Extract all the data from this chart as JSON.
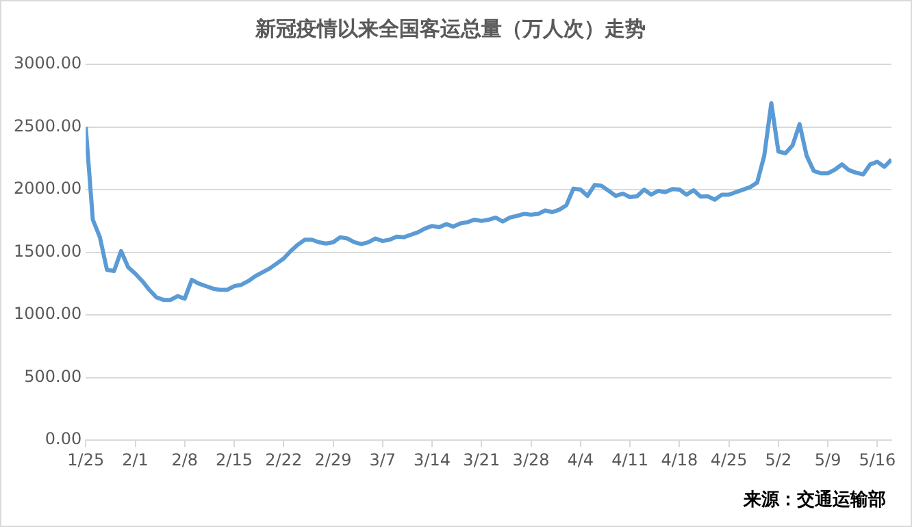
{
  "chart_data": {
    "type": "line",
    "title": "新冠疫情以来全国客运总量（万人次）走势",
    "annotations": [
      "来源：交通运输部"
    ],
    "x": [
      "--01-25",
      "--01-26",
      "--01-27",
      "--01-28",
      "--01-29",
      "--01-30",
      "--01-31",
      "--02-01",
      "--02-02",
      "--02-03",
      "--02-04",
      "--02-05",
      "--02-06",
      "--02-07",
      "--02-08",
      "--02-09",
      "--02-10",
      "--02-11",
      "--02-12",
      "--02-13",
      "--02-14",
      "--02-15",
      "--02-16",
      "--02-17",
      "--02-18",
      "--02-19",
      "--02-20",
      "--02-21",
      "--02-22",
      "--02-23",
      "--02-24",
      "--02-25",
      "--02-26",
      "--02-27",
      "--02-28",
      "--02-29",
      "--03-01",
      "--03-02",
      "--03-03",
      "--03-04",
      "--03-05",
      "--03-06",
      "--03-07",
      "--03-08",
      "--03-09",
      "--03-10",
      "--03-11",
      "--03-12",
      "--03-13",
      "--03-14",
      "--03-15",
      "--03-16",
      "--03-17",
      "--03-18",
      "--03-19",
      "--03-20",
      "--03-21",
      "--03-22",
      "--03-23",
      "--03-24",
      "--03-25",
      "--03-26",
      "--03-27",
      "--03-28",
      "--03-29",
      "--03-30",
      "--03-31",
      "--04-01",
      "--04-02",
      "--04-03",
      "--04-04",
      "--04-05",
      "--04-06",
      "--04-07",
      "--04-08",
      "--04-09",
      "--04-10",
      "--04-11",
      "--04-12",
      "--04-13",
      "--04-14",
      "--04-15",
      "--04-16",
      "--04-17",
      "--04-18",
      "--04-19",
      "--04-20",
      "--04-21",
      "--04-22",
      "--04-23",
      "--04-24",
      "--04-25",
      "--04-26",
      "--04-27",
      "--04-28",
      "--04-29",
      "--04-30",
      "--05-01",
      "--05-02",
      "--05-03",
      "--05-04",
      "--05-05",
      "--05-06",
      "--05-07",
      "--05-08",
      "--05-09",
      "--05-10",
      "--05-11",
      "--05-12",
      "--05-13",
      "--05-14",
      "--05-15",
      "--05-16",
      "--05-17",
      "--05-18"
    ],
    "series": [
      {
        "color": "#5b9bd5",
        "values": [
          2500,
          1760,
          1620,
          1360,
          1350,
          1510,
          1380,
          1330,
          1270,
          1200,
          1140,
          1120,
          1120,
          1150,
          1130,
          1280,
          1250,
          1230,
          1210,
          1200,
          1200,
          1230,
          1240,
          1270,
          1310,
          1340,
          1370,
          1410,
          1450,
          1510,
          1560,
          1600,
          1600,
          1580,
          1570,
          1580,
          1620,
          1610,
          1580,
          1565,
          1580,
          1610,
          1590,
          1600,
          1625,
          1620,
          1640,
          1660,
          1690,
          1710,
          1700,
          1725,
          1705,
          1730,
          1740,
          1760,
          1750,
          1760,
          1777,
          1745,
          1777,
          1790,
          1806,
          1800,
          1806,
          1834,
          1820,
          1840,
          1875,
          2008,
          2000,
          1950,
          2037,
          2030,
          1990,
          1950,
          1968,
          1940,
          1947,
          2000,
          1960,
          1990,
          1980,
          2005,
          2000,
          1960,
          1995,
          1944,
          1947,
          1920,
          1960,
          1960,
          1980,
          2000,
          2020,
          2057,
          2270,
          2690,
          2305,
          2290,
          2353,
          2523,
          2270,
          2150,
          2130,
          2130,
          2160,
          2202,
          2155,
          2135,
          2122,
          2202,
          2222,
          2182,
          2240
        ]
      }
    ],
    "xlim": [
      "--01-25",
      "--05-18"
    ],
    "xticks": [
      {
        "value": "--01-25",
        "label": "1/25"
      },
      {
        "value": "--02-01",
        "label": "2/1"
      },
      {
        "value": "--02-08",
        "label": "2/8"
      },
      {
        "value": "--02-15",
        "label": "2/15"
      },
      {
        "value": "--02-22",
        "label": "2/22"
      },
      {
        "value": "--02-29",
        "label": "2/29"
      },
      {
        "value": "--03-07",
        "label": "3/7"
      },
      {
        "value": "--03-14",
        "label": "3/14"
      },
      {
        "value": "--03-21",
        "label": "3/21"
      },
      {
        "value": "--03-28",
        "label": "3/28"
      },
      {
        "value": "--04-04",
        "label": "4/4"
      },
      {
        "value": "--04-11",
        "label": "4/11"
      },
      {
        "value": "--04-18",
        "label": "4/18"
      },
      {
        "value": "--04-25",
        "label": "4/25"
      },
      {
        "value": "--05-02",
        "label": "5/2"
      },
      {
        "value": "--05-09",
        "label": "5/9"
      },
      {
        "value": "--05-16",
        "label": "5/16"
      }
    ],
    "ylim": [
      0,
      3000
    ],
    "yticks": [
      {
        "value": 0,
        "label": "0.00"
      },
      {
        "value": 500,
        "label": "500.00"
      },
      {
        "value": 1000,
        "label": "1000.00"
      },
      {
        "value": 1500,
        "label": "1500.00"
      },
      {
        "value": 2000,
        "label": "2000.00"
      },
      {
        "value": 2500,
        "label": "2500.00"
      },
      {
        "value": 3000,
        "label": "3000.00"
      }
    ],
    "grid": "y",
    "legend": false
  }
}
